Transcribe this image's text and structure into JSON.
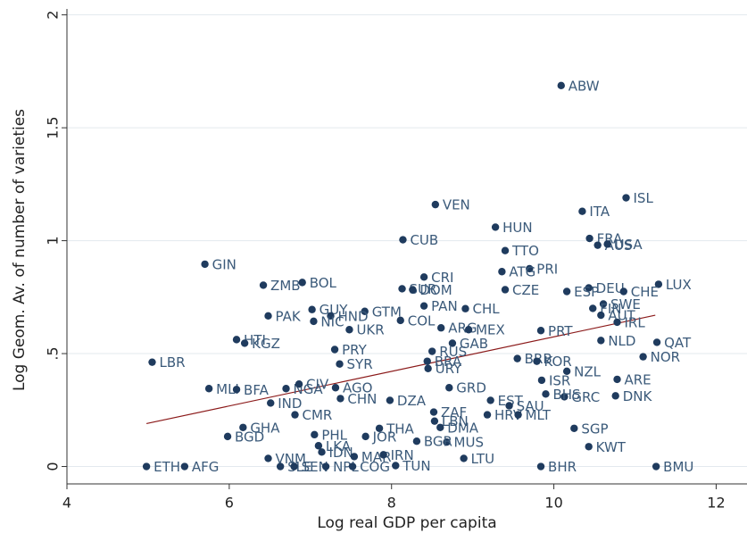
{
  "chart_data": {
    "type": "scatter",
    "x_label": "Log real GDP per capita",
    "y_label": "Log Geom. Av. of number of varieties",
    "xlim": [
      4,
      12.38
    ],
    "ylim": [
      -0.077,
      2.05
    ],
    "xticks": [
      4,
      6,
      8,
      10,
      12
    ],
    "yticks": [
      0,
      {
        "value": 0.5,
        "label": ".5"
      },
      1,
      1.5,
      2
    ],
    "grid": true,
    "color": "#1f3b5e",
    "label_color": "#3b5a7a",
    "labels": [
      "ABW",
      "ISL",
      "ITA",
      "VEN",
      "HUN",
      "FRA",
      "AUS",
      "USA",
      "CUB",
      "TTO",
      "GIN",
      "PRI",
      "ATG",
      "ZMB",
      "BOL",
      "CRI",
      "LUX",
      "CZE",
      "SUR",
      "DOM",
      "DEU",
      "CHE",
      "ESP",
      "SWE",
      "FIN",
      "AUT",
      "PAN",
      "GUY",
      "PAK",
      "CHL",
      "GTM",
      "HND",
      "NIC",
      "COL",
      "ARG",
      "MEX",
      "UKR",
      "IRL",
      "PRT",
      "HTI",
      "KGZ",
      "NLD",
      "QAT",
      "GAB",
      "PRY",
      "NOR",
      "RUS",
      "LBR",
      "SYR",
      "BRA",
      "URY",
      "BRB",
      "KOR",
      "ARE",
      "ISR",
      "NZL",
      "GRC",
      "BHS",
      "DNK",
      "MLI",
      "BFA",
      "NGA",
      "CIV",
      "AGO",
      "CHN",
      "DZA",
      "GRD",
      "EST",
      "SAU",
      "HRV",
      "MLT",
      "IND",
      "CMR",
      "ZAF",
      "LBN",
      "DMA",
      "MUS",
      "THA",
      "JOR",
      "GHA",
      "BGD",
      "SGP",
      "KWT",
      "BGR",
      "PHL",
      "LKA",
      "IDN",
      "MAR",
      "IRN",
      "LTU",
      "VNM",
      "TUN",
      "ETH",
      "AFG",
      "BHR",
      "BMU",
      "SLE",
      "SEN",
      "NPL",
      "COG"
    ],
    "x": [
      10.09,
      10.89,
      10.35,
      8.54,
      9.28,
      10.44,
      10.54,
      10.66,
      8.14,
      9.4,
      5.7,
      9.7,
      9.36,
      6.42,
      6.9,
      8.4,
      11.29,
      9.4,
      8.13,
      8.26,
      10.43,
      10.86,
      10.16,
      10.61,
      10.48,
      10.58,
      8.4,
      7.02,
      6.48,
      8.91,
      7.67,
      7.25,
      7.04,
      8.11,
      8.61,
      8.95,
      7.48,
      10.78,
      9.84,
      6.09,
      6.19,
      10.58,
      11.27,
      8.75,
      7.3,
      11.1,
      8.5,
      5.05,
      7.36,
      8.44,
      8.45,
      9.55,
      9.79,
      10.78,
      9.85,
      10.16,
      10.13,
      9.9,
      10.76,
      5.75,
      6.09,
      6.7,
      6.86,
      7.31,
      7.37,
      7.98,
      8.71,
      9.22,
      9.45,
      9.18,
      9.56,
      6.51,
      6.81,
      8.52,
      8.53,
      8.6,
      8.68,
      7.85,
      7.68,
      6.17,
      5.98,
      10.25,
      10.43,
      8.31,
      7.05,
      7.1,
      7.14,
      7.54,
      7.9,
      8.89,
      6.48,
      8.05,
      4.98,
      5.45,
      9.84,
      11.26,
      6.63,
      6.8,
      7.19,
      7.52
    ],
    "values": [
      1.687,
      1.19,
      1.13,
      1.16,
      1.06,
      1.01,
      0.98,
      0.985,
      1.004,
      0.956,
      0.896,
      0.876,
      0.863,
      0.803,
      0.815,
      0.839,
      0.807,
      0.783,
      0.787,
      0.783,
      0.791,
      0.775,
      0.775,
      0.72,
      0.7,
      0.67,
      0.711,
      0.695,
      0.667,
      0.699,
      0.687,
      0.667,
      0.643,
      0.647,
      0.614,
      0.606,
      0.606,
      0.639,
      0.602,
      0.562,
      0.546,
      0.558,
      0.55,
      0.546,
      0.518,
      0.486,
      0.51,
      0.462,
      0.454,
      0.466,
      0.434,
      0.478,
      0.466,
      0.386,
      0.382,
      0.422,
      0.309,
      0.321,
      0.313,
      0.345,
      0.341,
      0.345,
      0.365,
      0.349,
      0.301,
      0.293,
      0.349,
      0.293,
      0.269,
      0.229,
      0.229,
      0.281,
      0.229,
      0.241,
      0.201,
      0.173,
      0.108,
      0.169,
      0.133,
      0.173,
      0.133,
      0.169,
      0.088,
      0.112,
      0.141,
      0.092,
      0.064,
      0.044,
      0.052,
      0.036,
      0.036,
      0.004,
      0,
      0,
      0,
      0,
      0,
      0,
      0,
      0
    ],
    "fit": {
      "x": [
        4.98,
        11.25
      ],
      "values": [
        0.19,
        0.67
      ],
      "color": "#8b1a1a"
    }
  }
}
